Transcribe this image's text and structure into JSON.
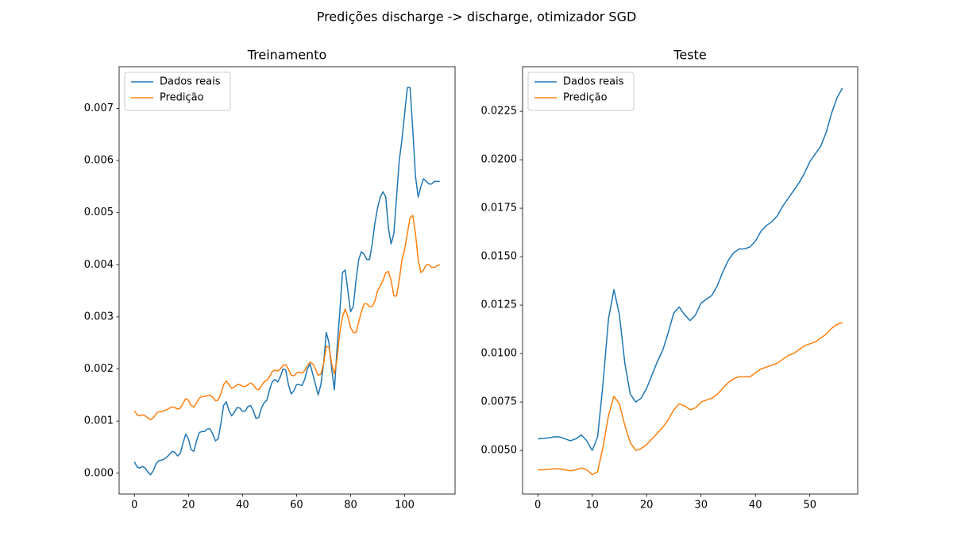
{
  "title": "Predições discharge -> discharge, otimizador SGD",
  "chart_data": [
    {
      "type": "line",
      "title": "Treinamento",
      "legend": "upper left",
      "x": [
        0,
        1,
        2,
        3,
        4,
        5,
        6,
        7,
        8,
        9,
        10,
        11,
        12,
        13,
        14,
        15,
        16,
        17,
        18,
        19,
        20,
        21,
        22,
        23,
        24,
        25,
        26,
        27,
        28,
        29,
        30,
        31,
        32,
        33,
        34,
        35,
        36,
        37,
        38,
        39,
        40,
        41,
        42,
        43,
        44,
        45,
        46,
        47,
        48,
        49,
        50,
        51,
        52,
        53,
        54,
        55,
        56,
        57,
        58,
        59,
        60,
        61,
        62,
        63,
        64,
        65,
        66,
        67,
        68,
        69,
        70,
        71,
        72,
        73,
        74,
        75,
        76,
        77,
        78,
        79,
        80,
        81,
        82,
        83,
        84,
        85,
        86,
        87,
        88,
        89,
        90,
        91,
        92,
        93,
        94,
        95,
        96,
        97,
        98,
        99,
        100,
        101,
        102,
        103,
        104,
        105,
        106,
        107,
        108,
        109,
        110,
        111,
        112,
        113
      ],
      "series": [
        {
          "name": "Dados reais",
          "color": "#1f77b4",
          "values": [
            0.00022,
            0.00012,
            0.0001,
            0.00013,
            0.0001,
            2e-05,
            -3e-05,
            5e-05,
            0.00018,
            0.00024,
            0.00025,
            0.00027,
            0.00031,
            0.00036,
            0.00042,
            0.0004,
            0.00033,
            0.00038,
            0.00058,
            0.00075,
            0.00066,
            0.00045,
            0.00042,
            0.00062,
            0.00078,
            0.0008,
            0.0008,
            0.00085,
            0.00085,
            0.00075,
            0.00062,
            0.00066,
            0.00095,
            0.0013,
            0.00137,
            0.0012,
            0.0011,
            0.00117,
            0.00126,
            0.00125,
            0.00119,
            0.00119,
            0.00128,
            0.0013,
            0.0012,
            0.00105,
            0.00107,
            0.00125,
            0.00135,
            0.0014,
            0.0016,
            0.00175,
            0.0018,
            0.00175,
            0.00185,
            0.002,
            0.00198,
            0.0017,
            0.00152,
            0.00158,
            0.0017,
            0.0017,
            0.00168,
            0.0018,
            0.002,
            0.0021,
            0.0019,
            0.0017,
            0.0015,
            0.0017,
            0.0021,
            0.0027,
            0.0025,
            0.002,
            0.0016,
            0.0024,
            0.0031,
            0.00385,
            0.0039,
            0.0035,
            0.0031,
            0.0032,
            0.0037,
            0.0041,
            0.00425,
            0.0042,
            0.0041,
            0.0041,
            0.0044,
            0.0048,
            0.0051,
            0.0053,
            0.0054,
            0.0053,
            0.0047,
            0.0044,
            0.0046,
            0.0053,
            0.006,
            0.0064,
            0.0069,
            0.0074,
            0.0074,
            0.0066,
            0.0057,
            0.0053,
            0.0055,
            0.00565,
            0.0056,
            0.00555,
            0.00555,
            0.0056,
            0.0056,
            0.0056
          ]
        },
        {
          "name": "Predição",
          "color": "#ff7f0e",
          "values": [
            0.0012,
            0.00112,
            0.0011,
            0.00112,
            0.0011,
            0.00106,
            0.00103,
            0.00106,
            0.00114,
            0.00118,
            0.00118,
            0.0012,
            0.00122,
            0.00125,
            0.00127,
            0.00126,
            0.00123,
            0.00125,
            0.00134,
            0.00143,
            0.0014,
            0.0013,
            0.00127,
            0.00135,
            0.00144,
            0.00147,
            0.00147,
            0.00149,
            0.0015,
            0.00146,
            0.00139,
            0.0014,
            0.00153,
            0.0017,
            0.00177,
            0.0017,
            0.00163,
            0.00165,
            0.0017,
            0.0017,
            0.00167,
            0.00166,
            0.0017,
            0.00173,
            0.0017,
            0.00162,
            0.0016,
            0.00168,
            0.00175,
            0.00178,
            0.00185,
            0.00195,
            0.00198,
            0.00196,
            0.002,
            0.00207,
            0.00208,
            0.002,
            0.00188,
            0.00187,
            0.00192,
            0.00194,
            0.00192,
            0.00197,
            0.00207,
            0.00213,
            0.0021,
            0.002,
            0.00188,
            0.0019,
            0.0021,
            0.00243,
            0.00242,
            0.0021,
            0.0019,
            0.0022,
            0.0027,
            0.003,
            0.00315,
            0.003,
            0.0028,
            0.0027,
            0.0027,
            0.0029,
            0.0031,
            0.00325,
            0.00325,
            0.0032,
            0.0032,
            0.0033,
            0.0035,
            0.0036,
            0.0037,
            0.00385,
            0.00387,
            0.0037,
            0.0034,
            0.0034,
            0.0037,
            0.0041,
            0.0043,
            0.0046,
            0.0049,
            0.00495,
            0.0046,
            0.0041,
            0.00385,
            0.0039,
            0.004,
            0.004,
            0.00395,
            0.00395,
            0.00398,
            0.004
          ]
        }
      ],
      "xlim": [
        -5.65,
        118.65
      ],
      "xticks": [
        0,
        20,
        40,
        60,
        80,
        100
      ],
      "ylim": [
        -0.0004,
        0.0078
      ],
      "yticks": [
        {
          "value": 0,
          "label": "0.000"
        },
        {
          "value": 0.001,
          "label": "0.001"
        },
        {
          "value": 0.002,
          "label": "0.002"
        },
        {
          "value": 0.003,
          "label": "0.003"
        },
        {
          "value": 0.004,
          "label": "0.004"
        },
        {
          "value": 0.005,
          "label": "0.005"
        },
        {
          "value": 0.006,
          "label": "0.006"
        },
        {
          "value": 0.007,
          "label": "0.007"
        }
      ]
    },
    {
      "type": "line",
      "title": "Teste",
      "legend": "upper left",
      "x": [
        0,
        1,
        2,
        3,
        4,
        5,
        6,
        7,
        8,
        9,
        10,
        11,
        12,
        13,
        14,
        15,
        16,
        17,
        18,
        19,
        20,
        21,
        22,
        23,
        24,
        25,
        26,
        27,
        28,
        29,
        30,
        31,
        32,
        33,
        34,
        35,
        36,
        37,
        38,
        39,
        40,
        41,
        42,
        43,
        44,
        45,
        46,
        47,
        48,
        49,
        50,
        51,
        52,
        53,
        54,
        55,
        56
      ],
      "series": [
        {
          "name": "Dados reais",
          "color": "#1f77b4",
          "values": [
            0.0056,
            0.00562,
            0.00565,
            0.0057,
            0.0057,
            0.0056,
            0.0055,
            0.0056,
            0.0058,
            0.0055,
            0.005,
            0.0057,
            0.0085,
            0.0118,
            0.0133,
            0.012,
            0.0095,
            0.0079,
            0.0075,
            0.0077,
            0.0082,
            0.0089,
            0.0096,
            0.0102,
            0.0111,
            0.0121,
            0.0124,
            0.012,
            0.0117,
            0.012,
            0.0126,
            0.0128,
            0.013,
            0.0135,
            0.0142,
            0.0148,
            0.0152,
            0.0154,
            0.0154,
            0.0155,
            0.0158,
            0.0163,
            0.0166,
            0.0168,
            0.0171,
            0.0176,
            0.018,
            0.0184,
            0.0188,
            0.0193,
            0.0199,
            0.0203,
            0.0207,
            0.0214,
            0.0224,
            0.0232,
            0.0237
          ]
        },
        {
          "name": "Predição",
          "color": "#ff7f0e",
          "values": [
            0.004,
            0.004,
            0.00403,
            0.00405,
            0.00405,
            0.004,
            0.00395,
            0.004,
            0.0041,
            0.004,
            0.00375,
            0.0039,
            0.0052,
            0.0068,
            0.0078,
            0.0074,
            0.0063,
            0.0054,
            0.005,
            0.0051,
            0.0053,
            0.0056,
            0.0059,
            0.0062,
            0.0066,
            0.0071,
            0.0074,
            0.0073,
            0.0071,
            0.0072,
            0.0075,
            0.0076,
            0.0077,
            0.0079,
            0.0082,
            0.0085,
            0.0087,
            0.0088,
            0.0088,
            0.0088,
            0.009,
            0.0092,
            0.0093,
            0.0094,
            0.0095,
            0.0097,
            0.0099,
            0.01,
            0.0102,
            0.0104,
            0.0105,
            0.0106,
            0.0108,
            0.011,
            0.0113,
            0.0115,
            0.0116
          ]
        }
      ],
      "xlim": [
        -2.8,
        58.8
      ],
      "xticks": [
        0,
        10,
        20,
        30,
        40,
        50
      ],
      "ylim": [
        0.00275,
        0.0248
      ],
      "yticks": [
        {
          "value": 0.005,
          "label": "0.0050"
        },
        {
          "value": 0.0075,
          "label": "0.0075"
        },
        {
          "value": 0.01,
          "label": "0.0100"
        },
        {
          "value": 0.0125,
          "label": "0.0125"
        },
        {
          "value": 0.015,
          "label": "0.0150"
        },
        {
          "value": 0.0175,
          "label": "0.0175"
        },
        {
          "value": 0.02,
          "label": "0.0200"
        },
        {
          "value": 0.0225,
          "label": "0.0225"
        }
      ]
    }
  ]
}
